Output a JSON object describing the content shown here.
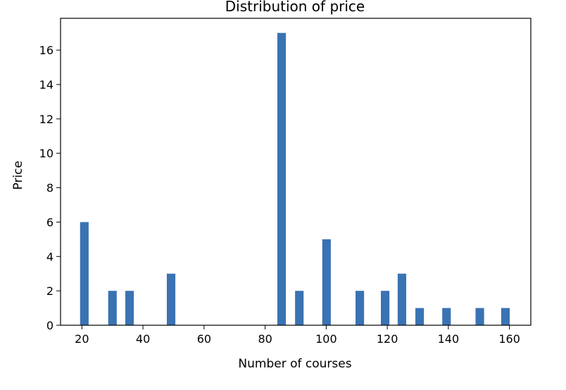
{
  "chart_data": {
    "type": "bar",
    "title": "Distribution of price",
    "xlabel": "Number of courses",
    "ylabel": "Price",
    "xlim": [
      13,
      167
    ],
    "ylim": [
      0,
      17.85
    ],
    "xticks": [
      20,
      40,
      60,
      80,
      100,
      120,
      140,
      160
    ],
    "yticks": [
      0,
      2,
      4,
      6,
      8,
      10,
      12,
      14,
      16
    ],
    "bar_width": 2.8,
    "grid": false,
    "color": "#3a73b3",
    "x": [
      20.8,
      30,
      35.6,
      49.2,
      85.4,
      91.2,
      100.1,
      111,
      119.3,
      124.8,
      130.6,
      139.4,
      150.3,
      158.7
    ],
    "values": [
      6,
      2,
      2,
      3,
      17,
      2,
      5,
      2,
      2,
      3,
      1,
      1,
      1,
      1
    ]
  }
}
